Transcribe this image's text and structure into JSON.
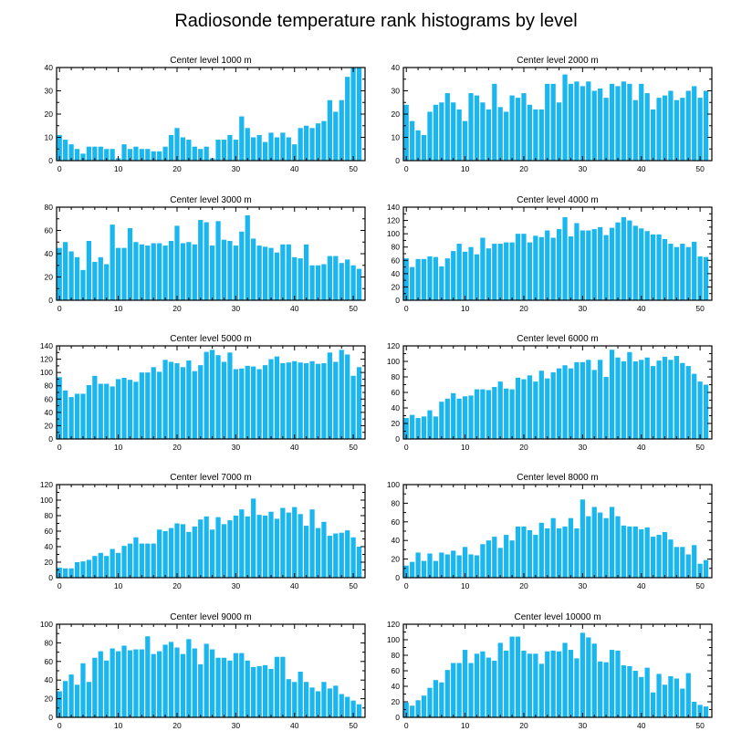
{
  "figure": {
    "title": "Radiosonde temperature rank histograms by level",
    "bar_color": "#1ab6f0",
    "layout": "5 rows x 2 columns"
  },
  "chart_data": [
    {
      "type": "bar",
      "title": "Center level 1000 m",
      "xlabel": "",
      "ylabel": "",
      "x": [
        0,
        1,
        2,
        3,
        4,
        5,
        6,
        7,
        8,
        9,
        10,
        11,
        12,
        13,
        14,
        15,
        16,
        17,
        18,
        19,
        20,
        21,
        22,
        23,
        24,
        25,
        26,
        27,
        28,
        29,
        30,
        31,
        32,
        33,
        34,
        35,
        36,
        37,
        38,
        39,
        40,
        41,
        42,
        43,
        44,
        45,
        46,
        47,
        48,
        49,
        50,
        51
      ],
      "values": [
        11,
        9,
        7,
        5,
        3,
        6,
        6,
        6,
        5,
        5,
        1,
        7,
        5,
        6,
        5,
        5,
        4,
        4,
        6,
        11,
        14,
        10,
        9,
        6,
        5,
        6,
        1,
        9,
        9,
        11,
        9,
        19,
        14,
        10,
        11,
        8,
        12,
        10,
        12,
        10,
        7,
        14,
        15,
        14,
        16,
        17,
        26,
        21,
        26,
        36,
        40,
        40
      ],
      "xlim": [
        -0.5,
        52
      ],
      "ylim": [
        0,
        40
      ],
      "xticks": [
        0,
        10,
        20,
        30,
        40,
        50
      ],
      "yticks": [
        0,
        10,
        20,
        30,
        40
      ],
      "yminor": [
        5,
        15,
        25,
        35
      ]
    },
    {
      "type": "bar",
      "title": "Center level 2000 m",
      "xlabel": "",
      "ylabel": "",
      "x": [
        0,
        1,
        2,
        3,
        4,
        5,
        6,
        7,
        8,
        9,
        10,
        11,
        12,
        13,
        14,
        15,
        16,
        17,
        18,
        19,
        20,
        21,
        22,
        23,
        24,
        25,
        26,
        27,
        28,
        29,
        30,
        31,
        32,
        33,
        34,
        35,
        36,
        37,
        38,
        39,
        40,
        41,
        42,
        43,
        44,
        45,
        46,
        47,
        48,
        49,
        50,
        51
      ],
      "values": [
        24,
        17,
        13,
        11,
        21,
        24,
        25,
        29,
        25,
        22,
        17,
        29,
        28,
        25,
        22,
        33,
        23,
        21,
        28,
        27,
        29,
        24,
        22,
        22,
        33,
        33,
        25,
        37,
        33,
        34,
        32,
        34,
        30,
        31,
        27,
        33,
        32,
        34,
        33,
        26,
        33,
        29,
        22,
        27,
        28,
        30,
        26,
        27,
        30,
        32,
        27,
        30
      ],
      "xlim": [
        -0.5,
        52
      ],
      "ylim": [
        0,
        40
      ],
      "xticks": [
        0,
        10,
        20,
        30,
        40,
        50
      ],
      "yticks": [
        0,
        10,
        20,
        30,
        40
      ],
      "yminor": [
        5,
        15,
        25,
        35
      ]
    },
    {
      "type": "bar",
      "title": "Center level 3000 m",
      "xlabel": "",
      "ylabel": "",
      "x": [
        0,
        1,
        2,
        3,
        4,
        5,
        6,
        7,
        8,
        9,
        10,
        11,
        12,
        13,
        14,
        15,
        16,
        17,
        18,
        19,
        20,
        21,
        22,
        23,
        24,
        25,
        26,
        27,
        28,
        29,
        30,
        31,
        32,
        33,
        34,
        35,
        36,
        37,
        38,
        39,
        40,
        41,
        42,
        43,
        44,
        45,
        46,
        47,
        48,
        49,
        50,
        51
      ],
      "values": [
        45,
        50,
        42,
        37,
        26,
        51,
        33,
        37,
        31,
        65,
        45,
        45,
        62,
        50,
        48,
        47,
        49,
        49,
        47,
        51,
        64,
        49,
        50,
        48,
        69,
        67,
        47,
        68,
        52,
        51,
        47,
        59,
        73,
        53,
        47,
        46,
        45,
        41,
        48,
        48,
        37,
        36,
        48,
        30,
        30,
        31,
        38,
        38,
        32,
        35,
        30,
        27
      ],
      "xlim": [
        -0.5,
        52
      ],
      "ylim": [
        0,
        80
      ],
      "xticks": [
        0,
        10,
        20,
        30,
        40,
        50
      ],
      "yticks": [
        0,
        20,
        40,
        60,
        80
      ],
      "yminor": [
        10,
        30,
        50,
        70
      ]
    },
    {
      "type": "bar",
      "title": "Center level 4000 m",
      "xlabel": "",
      "ylabel": "",
      "x": [
        0,
        1,
        2,
        3,
        4,
        5,
        6,
        7,
        8,
        9,
        10,
        11,
        12,
        13,
        14,
        15,
        16,
        17,
        18,
        19,
        20,
        21,
        22,
        23,
        24,
        25,
        26,
        27,
        28,
        29,
        30,
        31,
        32,
        33,
        34,
        35,
        36,
        37,
        38,
        39,
        40,
        41,
        42,
        43,
        44,
        45,
        46,
        47,
        48,
        49,
        50,
        51
      ],
      "values": [
        63,
        50,
        62,
        62,
        66,
        65,
        51,
        63,
        74,
        85,
        73,
        80,
        69,
        94,
        78,
        85,
        85,
        87,
        87,
        100,
        100,
        87,
        97,
        95,
        105,
        94,
        107,
        125,
        96,
        116,
        105,
        105,
        107,
        110,
        98,
        109,
        117,
        125,
        120,
        112,
        108,
        104,
        99,
        99,
        92,
        85,
        80,
        85,
        80,
        88,
        66,
        65
      ],
      "xlim": [
        -0.5,
        52
      ],
      "ylim": [
        0,
        140
      ],
      "xticks": [
        0,
        10,
        20,
        30,
        40,
        50
      ],
      "yticks": [
        0,
        20,
        40,
        60,
        80,
        100,
        120,
        140
      ],
      "yminor": [
        10,
        30,
        50,
        70,
        90,
        110,
        130
      ]
    },
    {
      "type": "bar",
      "title": "Center level 5000 m",
      "xlabel": "",
      "ylabel": "",
      "x": [
        0,
        1,
        2,
        3,
        4,
        5,
        6,
        7,
        8,
        9,
        10,
        11,
        12,
        13,
        14,
        15,
        16,
        17,
        18,
        19,
        20,
        21,
        22,
        23,
        24,
        25,
        26,
        27,
        28,
        29,
        30,
        31,
        32,
        33,
        34,
        35,
        36,
        37,
        38,
        39,
        40,
        41,
        42,
        43,
        44,
        45,
        46,
        47,
        48,
        49,
        50,
        51
      ],
      "values": [
        93,
        73,
        63,
        68,
        68,
        81,
        95,
        83,
        83,
        79,
        90,
        92,
        89,
        86,
        100,
        100,
        108,
        101,
        119,
        116,
        114,
        108,
        118,
        102,
        111,
        131,
        134,
        126,
        116,
        130,
        105,
        106,
        110,
        109,
        105,
        111,
        120,
        124,
        114,
        115,
        117,
        115,
        114,
        117,
        113,
        114,
        130,
        116,
        134,
        127,
        95,
        108
      ],
      "xlim": [
        -0.5,
        52
      ],
      "ylim": [
        0,
        140
      ],
      "xticks": [
        0,
        10,
        20,
        30,
        40,
        50
      ],
      "yticks": [
        0,
        20,
        40,
        60,
        80,
        100,
        120,
        140
      ],
      "yminor": [
        10,
        30,
        50,
        70,
        90,
        110,
        130
      ]
    },
    {
      "type": "bar",
      "title": "Center level 6000 m",
      "xlabel": "",
      "ylabel": "",
      "x": [
        0,
        1,
        2,
        3,
        4,
        5,
        6,
        7,
        8,
        9,
        10,
        11,
        12,
        13,
        14,
        15,
        16,
        17,
        18,
        19,
        20,
        21,
        22,
        23,
        24,
        25,
        26,
        27,
        28,
        29,
        30,
        31,
        32,
        33,
        34,
        35,
        36,
        37,
        38,
        39,
        40,
        41,
        42,
        43,
        44,
        45,
        46,
        47,
        48,
        49,
        50,
        51
      ],
      "values": [
        27,
        31,
        27,
        29,
        37,
        29,
        48,
        52,
        59,
        52,
        55,
        56,
        64,
        64,
        63,
        67,
        74,
        65,
        64,
        79,
        77,
        82,
        74,
        88,
        78,
        86,
        91,
        95,
        91,
        99,
        99,
        102,
        89,
        102,
        80,
        115,
        105,
        100,
        112,
        100,
        102,
        105,
        94,
        101,
        106,
        102,
        107,
        98,
        94,
        84,
        74,
        70
      ],
      "xlim": [
        -0.5,
        52
      ],
      "ylim": [
        0,
        120
      ],
      "xticks": [
        0,
        10,
        20,
        30,
        40,
        50
      ],
      "yticks": [
        0,
        20,
        40,
        60,
        80,
        100,
        120
      ],
      "yminor": [
        10,
        30,
        50,
        70,
        90,
        110
      ]
    },
    {
      "type": "bar",
      "title": "Center level 7000 m",
      "xlabel": "",
      "ylabel": "",
      "x": [
        0,
        1,
        2,
        3,
        4,
        5,
        6,
        7,
        8,
        9,
        10,
        11,
        12,
        13,
        14,
        15,
        16,
        17,
        18,
        19,
        20,
        21,
        22,
        23,
        24,
        25,
        26,
        27,
        28,
        29,
        30,
        31,
        32,
        33,
        34,
        35,
        36,
        37,
        38,
        39,
        40,
        41,
        42,
        43,
        44,
        45,
        46,
        47,
        48,
        49,
        50,
        51
      ],
      "values": [
        13,
        12,
        12,
        20,
        21,
        23,
        28,
        32,
        28,
        37,
        32,
        41,
        44,
        52,
        44,
        44,
        44,
        62,
        60,
        64,
        70,
        69,
        59,
        66,
        75,
        79,
        62,
        78,
        69,
        74,
        80,
        88,
        79,
        102,
        81,
        80,
        85,
        76,
        90,
        84,
        91,
        82,
        67,
        88,
        64,
        72,
        54,
        57,
        58,
        61,
        52,
        40
      ],
      "xlim": [
        -0.5,
        52
      ],
      "ylim": [
        0,
        120
      ],
      "xticks": [
        0,
        10,
        20,
        30,
        40,
        50
      ],
      "yticks": [
        0,
        20,
        40,
        60,
        80,
        100,
        120
      ],
      "yminor": [
        10,
        30,
        50,
        70,
        90,
        110
      ]
    },
    {
      "type": "bar",
      "title": "Center level 8000 m",
      "xlabel": "",
      "ylabel": "",
      "x": [
        0,
        1,
        2,
        3,
        4,
        5,
        6,
        7,
        8,
        9,
        10,
        11,
        12,
        13,
        14,
        15,
        16,
        17,
        18,
        19,
        20,
        21,
        22,
        23,
        24,
        25,
        26,
        27,
        28,
        29,
        30,
        31,
        32,
        33,
        34,
        35,
        36,
        37,
        38,
        39,
        40,
        41,
        42,
        43,
        44,
        45,
        46,
        47,
        48,
        49,
        50,
        51
      ],
      "values": [
        13,
        17,
        27,
        18,
        26,
        18,
        27,
        25,
        29,
        24,
        33,
        25,
        24,
        36,
        40,
        44,
        32,
        46,
        40,
        55,
        55,
        51,
        46,
        59,
        53,
        64,
        53,
        55,
        64,
        53,
        84,
        66,
        76,
        70,
        64,
        76,
        66,
        56,
        55,
        55,
        52,
        54,
        44,
        46,
        49,
        41,
        33,
        33,
        25,
        35,
        15,
        19
      ],
      "xlim": [
        -0.5,
        52
      ],
      "ylim": [
        0,
        100
      ],
      "xticks": [
        0,
        10,
        20,
        30,
        40,
        50
      ],
      "yticks": [
        0,
        20,
        40,
        60,
        80,
        100
      ],
      "yminor": [
        10,
        30,
        50,
        70,
        90
      ]
    },
    {
      "type": "bar",
      "title": "Center level 9000 m",
      "xlabel": "",
      "ylabel": "",
      "x": [
        0,
        1,
        2,
        3,
        4,
        5,
        6,
        7,
        8,
        9,
        10,
        11,
        12,
        13,
        14,
        15,
        16,
        17,
        18,
        19,
        20,
        21,
        22,
        23,
        24,
        25,
        26,
        27,
        28,
        29,
        30,
        31,
        32,
        33,
        34,
        35,
        36,
        37,
        38,
        39,
        40,
        41,
        42,
        43,
        44,
        45,
        46,
        47,
        48,
        49,
        50,
        51
      ],
      "values": [
        28,
        39,
        46,
        35,
        58,
        38,
        64,
        71,
        61,
        74,
        71,
        77,
        72,
        73,
        73,
        87,
        68,
        71,
        78,
        81,
        75,
        68,
        84,
        74,
        57,
        79,
        73,
        64,
        64,
        61,
        69,
        69,
        61,
        54,
        55,
        56,
        52,
        65,
        65,
        41,
        38,
        49,
        38,
        32,
        28,
        38,
        31,
        34,
        25,
        22,
        18,
        14
      ],
      "xlim": [
        -0.5,
        52
      ],
      "ylim": [
        0,
        100
      ],
      "xticks": [
        0,
        10,
        20,
        30,
        40,
        50
      ],
      "yticks": [
        0,
        20,
        40,
        60,
        80,
        100
      ],
      "yminor": [
        10,
        30,
        50,
        70,
        90
      ]
    },
    {
      "type": "bar",
      "title": "Center level 10000 m",
      "xlabel": "",
      "ylabel": "",
      "x": [
        0,
        1,
        2,
        3,
        4,
        5,
        6,
        7,
        8,
        9,
        10,
        11,
        12,
        13,
        14,
        15,
        16,
        17,
        18,
        19,
        20,
        21,
        22,
        23,
        24,
        25,
        26,
        27,
        28,
        29,
        30,
        31,
        32,
        33,
        34,
        35,
        36,
        37,
        38,
        39,
        40,
        41,
        42,
        43,
        44,
        45,
        46,
        47,
        48,
        49,
        50,
        51
      ],
      "values": [
        19,
        15,
        22,
        28,
        38,
        48,
        45,
        61,
        70,
        70,
        87,
        70,
        82,
        85,
        77,
        73,
        96,
        86,
        104,
        104,
        86,
        82,
        82,
        69,
        85,
        86,
        85,
        96,
        87,
        76,
        109,
        103,
        95,
        72,
        71,
        87,
        86,
        67,
        66,
        60,
        52,
        64,
        32,
        56,
        42,
        53,
        50,
        37,
        57,
        20,
        16,
        14
      ],
      "xlim": [
        -0.5,
        52
      ],
      "ylim": [
        0,
        120
      ],
      "xticks": [
        0,
        10,
        20,
        30,
        40,
        50
      ],
      "yticks": [
        0,
        20,
        40,
        60,
        80,
        100,
        120
      ],
      "yminor": [
        10,
        30,
        50,
        70,
        90,
        110
      ]
    }
  ]
}
